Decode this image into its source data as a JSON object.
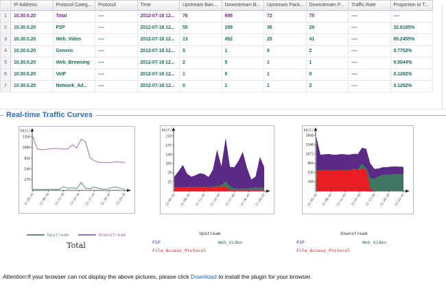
{
  "table": {
    "columns": [
      "IP Address",
      "Protocol Categ...",
      "Protocol",
      "Time",
      "Upstream Ban...",
      "Downstream B...",
      "Upstream Pack...",
      "Downstream P...",
      "Traffic Rate",
      "Proportion to T..."
    ],
    "rows": [
      {
        "style": "purple",
        "cells": [
          "1",
          "10.30.0.20",
          "Total",
          "----",
          "2012-07-18 12...",
          "76",
          "698",
          "72",
          "75",
          "----",
          "----"
        ]
      },
      {
        "style": "teal",
        "cells": [
          "2",
          "10.30.0.20",
          "P2P",
          "----",
          "2012-07-18 12...",
          "55",
          "199",
          "36",
          "29",
          "----",
          "32.8165%"
        ]
      },
      {
        "style": "teal",
        "cells": [
          "3",
          "10.30.0.20",
          "Web_Video",
          "----",
          "2012-07-18 12...",
          "13",
          "492",
          "25",
          "41",
          "----",
          "65.2455%"
        ]
      },
      {
        "style": "teal",
        "cells": [
          "4",
          "10.30.0.20",
          "Generic",
          "----",
          "2012-07-18 12...",
          "5",
          "1",
          "9",
          "2",
          "----",
          "0.7752%"
        ]
      },
      {
        "style": "teal",
        "cells": [
          "5",
          "10.30.0.20",
          "Web_Browsing",
          "----",
          "2012-07-18 12...",
          "2",
          "5",
          "1",
          "1",
          "----",
          "0.9044%"
        ]
      },
      {
        "style": "teal",
        "cells": [
          "6",
          "10.30.0.20",
          "VoIP",
          "----",
          "2012-07-18 12...",
          "1",
          "0",
          "1",
          "0",
          "----",
          "0.1292%"
        ]
      },
      {
        "style": "teal",
        "cells": [
          "7",
          "10.30.0.20",
          "Network_Ad...",
          "----",
          "2012-07-18 12...",
          "0",
          "1",
          "1",
          "2",
          "----",
          "0.1292%"
        ]
      }
    ]
  },
  "section": {
    "title": "Real-time Traffic Curves"
  },
  "chart_data": [
    {
      "name": "total",
      "type": "line",
      "title": "Total",
      "unit": "kbit/s",
      "x": [
        "12:05:43",
        "12:08:43",
        "12:11:43",
        "12:14:43",
        "12:17:43",
        "12:20:43",
        "12:23:43"
      ],
      "ylim": [
        0,
        1450
      ],
      "yticks": [
        270,
        540,
        810,
        1080,
        1350
      ],
      "grid": false,
      "legend_position": "bottom",
      "series": [
        {
          "name": "Upstream",
          "color": "#5f8d7d",
          "values": [
            30,
            22,
            20,
            25,
            30,
            25,
            28,
            95,
            50,
            70,
            45,
            200,
            55,
            35,
            90,
            50,
            30,
            35,
            75,
            85,
            55,
            30
          ]
        },
        {
          "name": "Downstream",
          "color": "#9a6fb0",
          "values": [
            1350,
            1045,
            1025,
            1030,
            1050,
            1060,
            1050,
            1040,
            1045,
            1150,
            1065,
            1290,
            1230,
            830,
            745,
            710,
            700,
            700,
            705,
            720,
            715,
            700
          ]
        }
      ]
    },
    {
      "name": "upstream",
      "type": "stacked_area",
      "title": "Upstream",
      "unit": "kbit/s",
      "x": [
        "12:05:43",
        "12:08:43",
        "12:11:43",
        "12:14:43",
        "12:17:43",
        "12:20:43",
        "12:23:43"
      ],
      "ylim": [
        0,
        225
      ],
      "yticks": [
        35,
        70,
        105,
        140,
        175,
        210
      ],
      "grid": false,
      "legend_position": "bottom",
      "series": [
        {
          "name": "File_Access_Protocol",
          "color": "#ec1c24",
          "values": [
            13,
            14,
            13,
            14,
            15,
            14,
            14,
            15,
            14,
            15,
            16,
            18,
            16,
            6,
            3,
            2,
            2,
            2,
            2,
            2,
            2,
            2
          ]
        },
        {
          "name": "Web_Video",
          "color": "#3f7561",
          "values": [
            2,
            2,
            2,
            2,
            2,
            2,
            2,
            2,
            2,
            3,
            3,
            6,
            22,
            12,
            8,
            8,
            8,
            9,
            10,
            12,
            13,
            11
          ]
        },
        {
          "name": "P2P",
          "color": "#5b2a86",
          "values": [
            40,
            60,
            85,
            50,
            38,
            45,
            52,
            48,
            38,
            62,
            140,
            70,
            165,
            75,
            80,
            105,
            140,
            78,
            32,
            42,
            115,
            80
          ]
        }
      ]
    },
    {
      "name": "downstream",
      "type": "stacked_area",
      "title": "Downstream",
      "unit": "kbit/s",
      "x": [
        "12:05:43",
        "12:08:43",
        "12:11:43",
        "12:14:43",
        "12:17:43",
        "12:20:43",
        "12:23:43"
      ],
      "ylim": [
        0,
        1700
      ],
      "yticks": [
        268,
        536,
        804,
        1072,
        1340,
        1608
      ],
      "grid": false,
      "legend_position": "bottom",
      "series": [
        {
          "name": "File_Access_Protocol",
          "color": "#ec1c24",
          "values": [
            600,
            590,
            610,
            600,
            590,
            600,
            610,
            590,
            600,
            640,
            600,
            660,
            620,
            80,
            0,
            0,
            0,
            0,
            0,
            0,
            0,
            0
          ]
        },
        {
          "name": "Web_Video",
          "color": "#3f7561",
          "values": [
            10,
            10,
            10,
            10,
            10,
            10,
            10,
            10,
            10,
            15,
            20,
            130,
            60,
            300,
            360,
            420,
            480,
            470,
            490,
            500,
            495,
            490
          ]
        },
        {
          "name": "P2P",
          "color": "#5b2a86",
          "values": [
            960,
            450,
            440,
            460,
            450,
            440,
            450,
            460,
            440,
            420,
            450,
            460,
            540,
            420,
            280,
            230,
            210,
            220,
            215,
            210,
            210,
            205
          ]
        }
      ]
    }
  ],
  "legends": {
    "total": {
      "title": "Total",
      "items": [
        {
          "label": "Upstream",
          "color": "#5f8d7d"
        },
        {
          "label": "Downstream",
          "color": "#9a6fb0"
        }
      ]
    },
    "upstream": {
      "title": "Upstream",
      "items": [
        {
          "label": "P2P",
          "color": "#5b2a86"
        },
        {
          "label": "Web_Video",
          "color": "#2e6b57"
        },
        {
          "label": "File_Access_Protocol",
          "color": "#e11b1b"
        }
      ]
    },
    "downstream": {
      "title": "Downstream",
      "items": [
        {
          "label": "P2P",
          "color": "#5b2a86"
        },
        {
          "label": "Web_Video",
          "color": "#2e6b57"
        },
        {
          "label": "File_Access_Protocol",
          "color": "#e11b1b"
        }
      ]
    }
  },
  "footer": {
    "attention_prefix": "Attention:If your browser can not display the above pictures, please click ",
    "link_label": "Download",
    "attention_suffix": " to install the plugin for your browser."
  },
  "colors": {
    "accent_blue": "#2f6db5",
    "row_total": "#7d2b8d",
    "row_protocol": "#1c6e60",
    "chart_border": "#b7b1d9",
    "link": "#1a66c0"
  }
}
